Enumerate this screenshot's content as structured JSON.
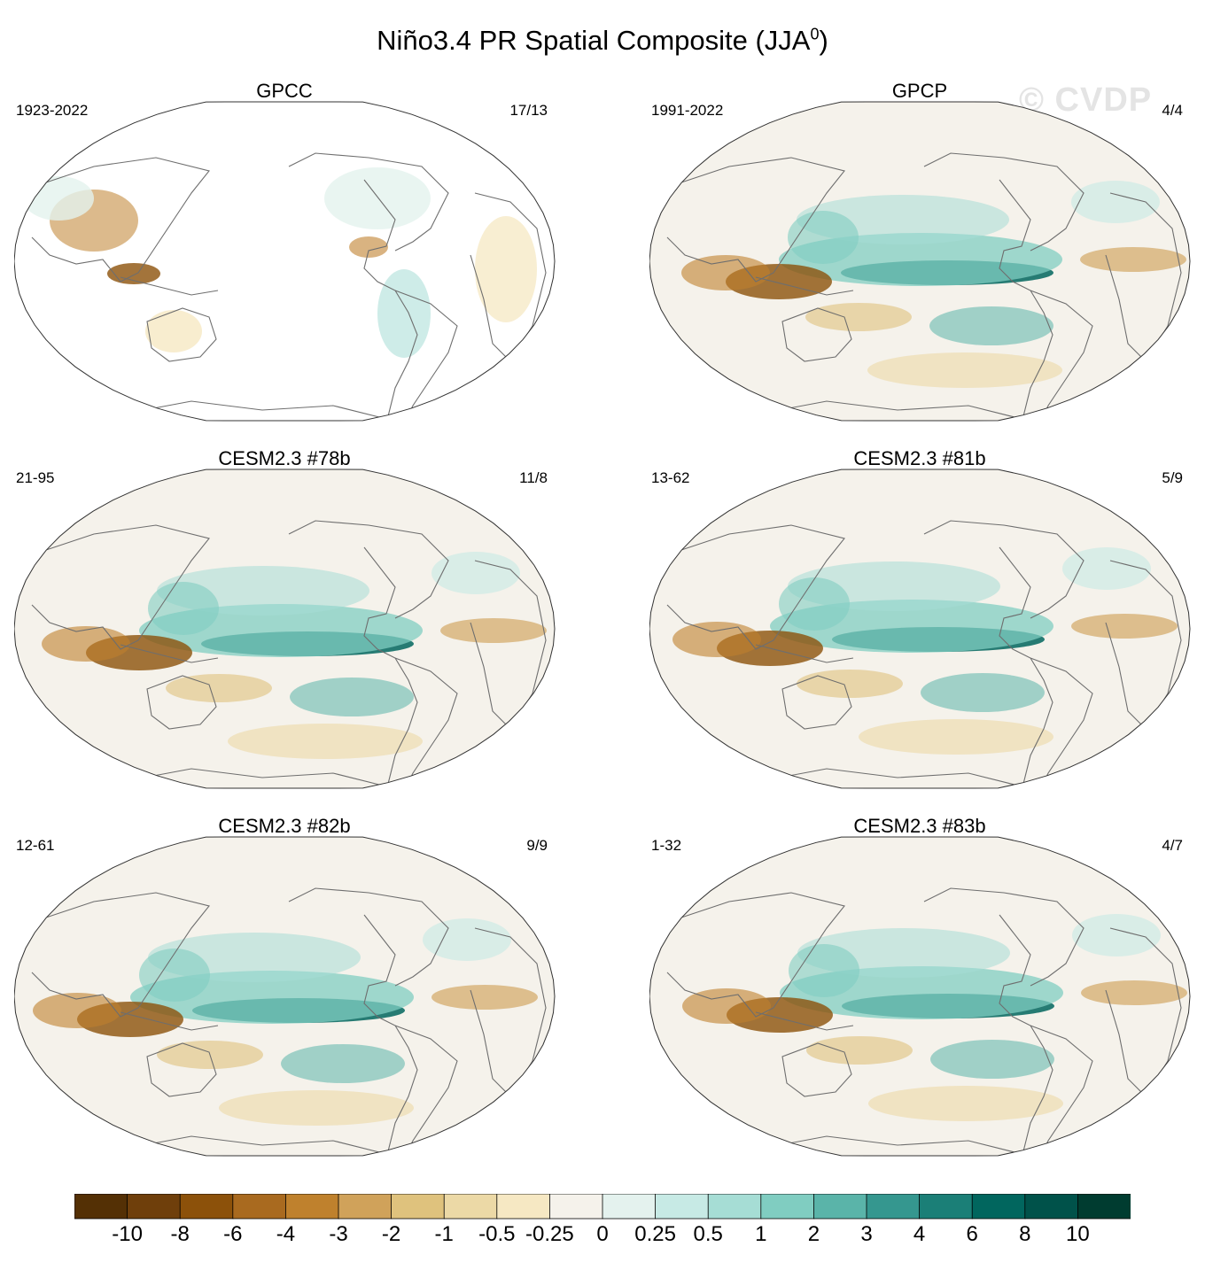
{
  "figure": {
    "title": "Niño3.4 PR Spatial Composite (JJA",
    "title_superscript": "0",
    "title_close": ")",
    "watermark": "© CVDP"
  },
  "panels": [
    {
      "title": "GPCC",
      "period": "1923-2022",
      "count": "17/13",
      "coverage": "land-only"
    },
    {
      "title": "GPCP",
      "period": "1991-2022",
      "count": "4/4",
      "coverage": "global"
    },
    {
      "title": "CESM2.3 #78b",
      "period": "21-95",
      "count": "11/8",
      "coverage": "global"
    },
    {
      "title": "CESM2.3 #81b",
      "period": "13-62",
      "count": "5/9",
      "coverage": "global"
    },
    {
      "title": "CESM2.3 #82b",
      "period": "12-61",
      "count": "9/9",
      "coverage": "global"
    },
    {
      "title": "CESM2.3 #83b",
      "period": "1-32",
      "count": "4/7",
      "coverage": "global"
    }
  ],
  "colorbar": {
    "labels": [
      "-10",
      "-8",
      "-6",
      "-4",
      "-3",
      "-2",
      "-1",
      "-0.5",
      "-0.25",
      "0",
      "0.25",
      "0.5",
      "1",
      "2",
      "3",
      "4",
      "6",
      "8",
      "10"
    ],
    "colors": [
      "#543005",
      "#6f3f0b",
      "#8c510a",
      "#a96a1f",
      "#bf812d",
      "#d0a25a",
      "#dfc27d",
      "#ecd9a6",
      "#f6e8c3",
      "#f5f2eb",
      "#e4f2ee",
      "#c7eae5",
      "#a6ddd5",
      "#80cdc1",
      "#5ab4a9",
      "#35978f",
      "#1b7f77",
      "#01665e",
      "#00524a",
      "#003c30"
    ]
  },
  "projection": "Robinson, 180° centered",
  "variable": "precipitation anomaly",
  "colors": {
    "ocean_neutral": "#f5f2eb",
    "coast": "#6e6e6e",
    "wet": "#35978f",
    "dry": "#bf812d"
  }
}
